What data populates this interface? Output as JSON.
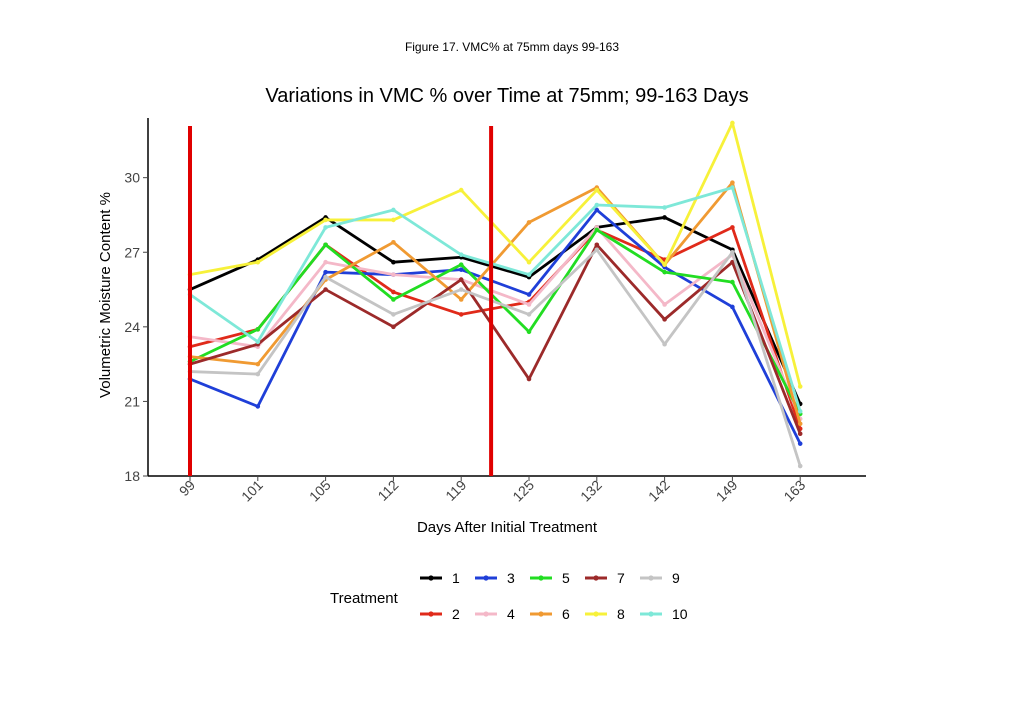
{
  "caption": "Figure 17. VMC% at 75mm days 99-163",
  "chart_data": {
    "type": "line",
    "title": "Variations in VMC % over Time at 75mm; 99-163 Days",
    "xlabel": "Days After Initial Treatment",
    "ylabel": "Volumetric Moisture Content %",
    "categories": [
      "99",
      "101",
      "105",
      "112",
      "119",
      "125",
      "132",
      "142",
      "149",
      "163"
    ],
    "ylim": [
      18,
      32.4
    ],
    "yticks": [
      18,
      21,
      24,
      27,
      30
    ],
    "grid": false,
    "legend": {
      "title": "Treatment",
      "position": "bottom"
    },
    "vertical_markers": [
      {
        "after_category": "99",
        "color": "#e00000"
      },
      {
        "after_category": "119",
        "color": "#e00000"
      }
    ],
    "series": [
      {
        "name": "1",
        "color": "#000000",
        "values": [
          25.5,
          26.7,
          28.4,
          26.6,
          26.8,
          26.0,
          28.0,
          28.4,
          27.1,
          20.9
        ]
      },
      {
        "name": "2",
        "color": "#e02a1a",
        "values": [
          23.2,
          23.9,
          27.3,
          25.4,
          24.5,
          25.0,
          27.9,
          26.7,
          28.0,
          19.9
        ]
      },
      {
        "name": "3",
        "color": "#1f3fd8",
        "values": [
          21.9,
          20.8,
          26.2,
          26.1,
          26.3,
          25.3,
          28.7,
          26.4,
          24.8,
          19.3
        ]
      },
      {
        "name": "4",
        "color": "#f4b8c8",
        "values": [
          23.6,
          23.2,
          26.6,
          26.1,
          25.9,
          24.9,
          28.0,
          24.9,
          26.9,
          20.3
        ]
      },
      {
        "name": "5",
        "color": "#22dd22",
        "values": [
          22.6,
          23.9,
          27.3,
          25.1,
          26.5,
          23.8,
          27.9,
          26.2,
          25.8,
          20.5
        ]
      },
      {
        "name": "6",
        "color": "#f09a32",
        "values": [
          22.8,
          22.5,
          25.9,
          27.4,
          25.1,
          28.2,
          29.6,
          26.5,
          29.8,
          20.1
        ]
      },
      {
        "name": "7",
        "color": "#9c2a2a",
        "values": [
          22.5,
          23.3,
          25.5,
          24.0,
          25.9,
          21.9,
          27.3,
          24.3,
          26.6,
          19.7
        ]
      },
      {
        "name": "8",
        "color": "#f7f13a",
        "values": [
          26.1,
          26.6,
          28.3,
          28.3,
          29.5,
          26.6,
          29.5,
          26.5,
          32.2,
          21.6
        ]
      },
      {
        "name": "9",
        "color": "#c4c4c4",
        "values": [
          22.2,
          22.1,
          26.0,
          24.5,
          25.5,
          24.5,
          27.1,
          23.3,
          27.0,
          18.4
        ]
      },
      {
        "name": "10",
        "color": "#7ee8d8",
        "values": [
          25.3,
          23.4,
          28.0,
          28.7,
          26.9,
          26.1,
          28.9,
          28.8,
          29.6,
          20.6
        ]
      }
    ]
  }
}
